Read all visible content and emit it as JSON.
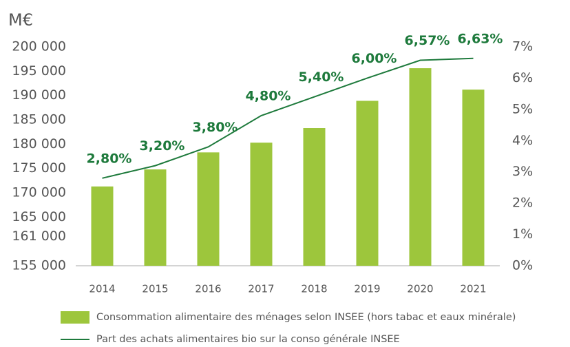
{
  "chart_data": {
    "type": "bar",
    "y_unit": "M€",
    "categories": [
      "2014",
      "2015",
      "2016",
      "2017",
      "2018",
      "2019",
      "2020",
      "2021"
    ],
    "series": [
      {
        "name": "Consommation alimentaire des ménages selon INSEE (hors tabac et eaux minérale)",
        "type": "bar",
        "color": "#9dc63c",
        "values": [
          171300,
          174800,
          178300,
          180300,
          183300,
          188900,
          195600,
          191200
        ]
      },
      {
        "name": "Part des achats alimentaires bio sur la conso générale INSEE",
        "type": "line",
        "axis": "y2",
        "color": "#1e7a3c",
        "values": [
          2.8,
          3.2,
          3.8,
          4.8,
          5.4,
          6.0,
          6.57,
          6.63
        ],
        "value_labels": [
          "2,80%",
          "3,20%",
          "3,80%",
          "4,80%",
          "5,40%",
          "6,00%",
          "6,57%",
          "6,63%"
        ]
      }
    ],
    "ylim": [
      155000,
      200000
    ],
    "yticks": [
      {
        "value": 155000,
        "label": "155 000"
      },
      {
        "value": 161000,
        "label": "161 000"
      },
      {
        "value": 165000,
        "label": "165 000"
      },
      {
        "value": 170000,
        "label": "170 000"
      },
      {
        "value": 175000,
        "label": "175 000"
      },
      {
        "value": 180000,
        "label": "180 000"
      },
      {
        "value": 185000,
        "label": "185 000"
      },
      {
        "value": 190000,
        "label": "190 000"
      },
      {
        "value": 195000,
        "label": "195 000"
      },
      {
        "value": 200000,
        "label": "200 000"
      }
    ],
    "y2lim": [
      0,
      7
    ],
    "y2ticks": [
      {
        "value": 0,
        "label": "0%"
      },
      {
        "value": 1,
        "label": "1%"
      },
      {
        "value": 2,
        "label": "2%"
      },
      {
        "value": 3,
        "label": "3%"
      },
      {
        "value": 4,
        "label": "4%"
      },
      {
        "value": 5,
        "label": "5%"
      },
      {
        "value": 6,
        "label": "6%"
      },
      {
        "value": 7,
        "label": "7%"
      }
    ],
    "grid": false
  }
}
